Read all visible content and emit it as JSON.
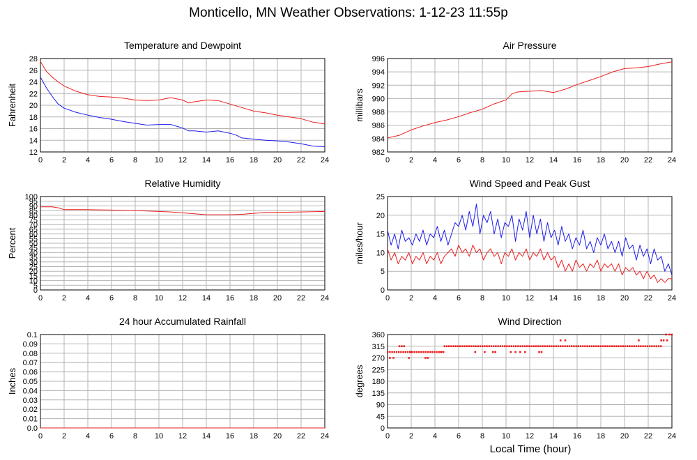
{
  "title": "Monticello, MN Weather Observations: 1-12-23 11:55p",
  "xlabel": "Local Time (hour)",
  "colors": {
    "red": "#ee1c1c",
    "blue": "#1c1cee",
    "grid": "#b4b4b4"
  },
  "chart_data": [
    {
      "id": "temp",
      "type": "line",
      "title": "Temperature and Dewpoint",
      "ylabel": "Fahrenheit",
      "xlim": [
        0,
        24
      ],
      "ylim": [
        12,
        28
      ],
      "xticks": [
        "0",
        "2",
        "4",
        "6",
        "8",
        "10",
        "12",
        "14",
        "16",
        "18",
        "20",
        "22",
        "24"
      ],
      "yticks": [
        "12",
        "14",
        "16",
        "18",
        "20",
        "22",
        "24",
        "26",
        "28"
      ],
      "grid": true,
      "series": [
        {
          "color": "red",
          "x": [
            0,
            0.5,
            1,
            1.5,
            2,
            3,
            4,
            5,
            6,
            7,
            8,
            9,
            10,
            11,
            12,
            12.5,
            13,
            14,
            15,
            16,
            17,
            18,
            19,
            20,
            21,
            22,
            23,
            24
          ],
          "y": [
            27.5,
            25.8,
            24.8,
            24,
            23.3,
            22.4,
            21.8,
            21.5,
            21.4,
            21.2,
            20.9,
            20.8,
            20.9,
            21.3,
            20.9,
            20.4,
            20.6,
            20.9,
            20.8,
            20.2,
            19.6,
            19.0,
            18.7,
            18.3,
            18.0,
            17.7,
            17.1,
            16.8
          ]
        },
        {
          "color": "blue",
          "x": [
            0,
            0.5,
            1,
            1.5,
            2,
            3,
            4,
            5,
            6,
            7,
            8,
            9,
            10,
            11,
            12,
            12.5,
            13,
            14,
            15,
            16,
            16.5,
            17,
            18,
            19,
            20,
            21,
            22,
            23,
            24
          ],
          "y": [
            24.8,
            23,
            21.5,
            20.2,
            19.5,
            18.8,
            18.3,
            17.9,
            17.6,
            17.2,
            16.9,
            16.6,
            16.7,
            16.7,
            16.1,
            15.6,
            15.6,
            15.4,
            15.6,
            15.2,
            14.9,
            14.4,
            14.2,
            14.0,
            13.9,
            13.7,
            13.4,
            13.0,
            12.9
          ]
        }
      ]
    },
    {
      "id": "pressure",
      "type": "line",
      "title": "Air Pressure",
      "ylabel": "millibars",
      "xlim": [
        0,
        24
      ],
      "ylim": [
        982,
        996
      ],
      "xticks": [
        "0",
        "2",
        "4",
        "6",
        "8",
        "10",
        "12",
        "14",
        "16",
        "18",
        "20",
        "22",
        "24"
      ],
      "yticks": [
        "982",
        "984",
        "986",
        "988",
        "990",
        "992",
        "994",
        "996"
      ],
      "grid": true,
      "series": [
        {
          "color": "red",
          "x": [
            0,
            1,
            2,
            3,
            4,
            5,
            6,
            7,
            8,
            9,
            10,
            10.5,
            11,
            12,
            13,
            14,
            15,
            16,
            17,
            18,
            19,
            20,
            21,
            22,
            23,
            24
          ],
          "y": [
            984.1,
            984.5,
            985.3,
            985.9,
            986.4,
            986.8,
            987.3,
            987.9,
            988.4,
            989.2,
            989.8,
            990.7,
            991.0,
            991.1,
            991.2,
            990.9,
            991.4,
            992.1,
            992.7,
            993.3,
            994.0,
            994.5,
            994.6,
            994.8,
            995.2,
            995.5
          ]
        }
      ]
    },
    {
      "id": "humidity",
      "type": "line",
      "title": "Relative Humidity",
      "ylabel": "Percent",
      "xlim": [
        0,
        24
      ],
      "ylim": [
        0,
        100
      ],
      "xticks": [
        "0",
        "2",
        "4",
        "6",
        "8",
        "10",
        "12",
        "14",
        "16",
        "18",
        "20",
        "22",
        "24"
      ],
      "yticks": [
        "0",
        "5",
        "10",
        "15",
        "20",
        "25",
        "30",
        "35",
        "40",
        "45",
        "50",
        "55",
        "60",
        "65",
        "70",
        "75",
        "80",
        "85",
        "90",
        "95",
        "100"
      ],
      "grid": true,
      "series": [
        {
          "color": "red",
          "x": [
            0,
            1,
            1.5,
            2,
            4,
            6,
            8,
            10,
            11,
            12,
            13,
            14,
            15,
            16,
            17,
            18,
            19,
            20,
            22,
            24
          ],
          "y": [
            89,
            89,
            88,
            86,
            86,
            85.5,
            85,
            84,
            83.5,
            82.5,
            81.5,
            80.5,
            80.5,
            80.5,
            81,
            82,
            83,
            83,
            83.5,
            84
          ]
        }
      ]
    },
    {
      "id": "wind",
      "type": "line",
      "title": "Wind Speed and Peak Gust",
      "ylabel": "miles/hour",
      "xlim": [
        0,
        24
      ],
      "ylim": [
        0,
        25
      ],
      "xticks": [
        "0",
        "2",
        "4",
        "6",
        "8",
        "10",
        "12",
        "14",
        "16",
        "18",
        "20",
        "22",
        "24"
      ],
      "yticks": [
        "0",
        "5",
        "10",
        "15",
        "20",
        "25"
      ],
      "grid": true,
      "series": [
        {
          "color": "blue",
          "x": [
            0,
            0.3,
            0.6,
            0.9,
            1.2,
            1.5,
            1.8,
            2.1,
            2.4,
            2.7,
            3,
            3.3,
            3.6,
            3.9,
            4.2,
            4.5,
            4.8,
            5.1,
            5.4,
            5.7,
            6,
            6.3,
            6.6,
            6.9,
            7.2,
            7.5,
            7.8,
            8.1,
            8.4,
            8.7,
            9,
            9.3,
            9.6,
            9.9,
            10.2,
            10.5,
            10.8,
            11.1,
            11.4,
            11.7,
            12,
            12.3,
            12.6,
            12.9,
            13.2,
            13.5,
            13.8,
            14.1,
            14.4,
            14.7,
            15,
            15.3,
            15.6,
            15.9,
            16.2,
            16.5,
            16.8,
            17.1,
            17.4,
            17.7,
            18,
            18.3,
            18.6,
            18.9,
            19.2,
            19.5,
            19.8,
            20.1,
            20.4,
            20.7,
            21,
            21.3,
            21.6,
            21.9,
            22.2,
            22.5,
            22.8,
            23.1,
            23.4,
            23.7,
            24
          ],
          "y": [
            16,
            12,
            15,
            11,
            16,
            13,
            14,
            12,
            15,
            13,
            16,
            12,
            15,
            14,
            17,
            13,
            16,
            12,
            15,
            18,
            17,
            20,
            16,
            21,
            17,
            23,
            15,
            20,
            18,
            21,
            15,
            19,
            14,
            18,
            17,
            20,
            13,
            19,
            16,
            21,
            14,
            20,
            15,
            19,
            13,
            18,
            14,
            16,
            12,
            17,
            13,
            15,
            11,
            14,
            12,
            16,
            11,
            13,
            10,
            14,
            12,
            15,
            11,
            13,
            10,
            13,
            9,
            14,
            11,
            12,
            8,
            12,
            9,
            11,
            7,
            11,
            8,
            9,
            5,
            7,
            4
          ]
        },
        {
          "color": "red",
          "x": [
            0,
            0.3,
            0.6,
            0.9,
            1.2,
            1.5,
            1.8,
            2.1,
            2.4,
            2.7,
            3,
            3.3,
            3.6,
            3.9,
            4.2,
            4.5,
            4.8,
            5.1,
            5.4,
            5.7,
            6,
            6.3,
            6.6,
            6.9,
            7.2,
            7.5,
            7.8,
            8.1,
            8.4,
            8.7,
            9,
            9.3,
            9.6,
            9.9,
            10.2,
            10.5,
            10.8,
            11.1,
            11.4,
            11.7,
            12,
            12.3,
            12.6,
            12.9,
            13.2,
            13.5,
            13.8,
            14.1,
            14.4,
            14.7,
            15,
            15.3,
            15.6,
            15.9,
            16.2,
            16.5,
            16.8,
            17.1,
            17.4,
            17.7,
            18,
            18.3,
            18.6,
            18.9,
            19.2,
            19.5,
            19.8,
            20.1,
            20.4,
            20.7,
            21,
            21.3,
            21.6,
            21.9,
            22.2,
            22.5,
            22.8,
            23.1,
            23.4,
            23.7,
            24
          ],
          "y": [
            11,
            8,
            10,
            7,
            9,
            8,
            10,
            7,
            9,
            8,
            10,
            7,
            9,
            8,
            10,
            7,
            9,
            10,
            11,
            9,
            12,
            10,
            11,
            9,
            12,
            10,
            11,
            8,
            10,
            11,
            9,
            10,
            7,
            10,
            9,
            11,
            8,
            10,
            9,
            11,
            8,
            10,
            9,
            11,
            8,
            10,
            8,
            9,
            6,
            8,
            5,
            7,
            5,
            8,
            6,
            7,
            5,
            7,
            6,
            8,
            5,
            7,
            6,
            7,
            5,
            7,
            4,
            6,
            5,
            6,
            4,
            5,
            3,
            5,
            3,
            4,
            2,
            3,
            2,
            3,
            3
          ]
        }
      ]
    },
    {
      "id": "rain",
      "type": "line",
      "title": "24 hour Accumulated Rainfall",
      "ylabel": "Inches",
      "xlim": [
        0,
        24
      ],
      "ylim": [
        0,
        0.1
      ],
      "xticks": [
        "0",
        "2",
        "4",
        "6",
        "8",
        "10",
        "12",
        "14",
        "16",
        "18",
        "20",
        "22",
        "24"
      ],
      "yticks": [
        "0.0",
        "0.01",
        "0.02",
        "0.03",
        "0.04",
        "0.05",
        "0.06",
        "0.07",
        "0.08",
        "0.09",
        "0.1"
      ],
      "grid": true,
      "series": [
        {
          "color": "red",
          "x": [
            0,
            24
          ],
          "y": [
            0,
            0
          ]
        }
      ]
    },
    {
      "id": "direction",
      "type": "scatter",
      "title": "Wind Direction",
      "ylabel": "degrees",
      "xlim": [
        0,
        24
      ],
      "ylim": [
        0,
        360
      ],
      "xticks": [
        "0",
        "2",
        "4",
        "6",
        "8",
        "10",
        "12",
        "14",
        "16",
        "18",
        "20",
        "22",
        "24"
      ],
      "yticks": [
        "0",
        "45",
        "90",
        "135",
        "180",
        "225",
        "270",
        "315",
        "360"
      ],
      "grid": true,
      "series": [
        {
          "color": "red",
          "bands": [
            {
              "y": 292.5,
              "x": [
                0,
                4.8
              ]
            },
            {
              "y": 315,
              "x": [
                4.8,
                23.2
              ]
            }
          ],
          "x": [
            0.2,
            0.5,
            1.0,
            1.2,
            1.4,
            1.8,
            2.0,
            3.2,
            3.4,
            4.5,
            4.7,
            7.4,
            8.2,
            8.9,
            9.1,
            10.4,
            10.8,
            11.2,
            11.6,
            12.8,
            13.0,
            14.6,
            15.0,
            21.2,
            23.1,
            23.3,
            23.5,
            23.6,
            23.8,
            24.0
          ],
          "y": [
            270,
            270,
            315,
            315,
            315,
            270,
            292.5,
            270,
            270,
            292.5,
            292.5,
            292.5,
            292.5,
            292.5,
            292.5,
            292.5,
            292.5,
            292.5,
            292.5,
            292.5,
            292.5,
            337.5,
            337.5,
            337.5,
            337.5,
            337.5,
            360,
            337.5,
            360,
            360
          ]
        }
      ]
    }
  ]
}
